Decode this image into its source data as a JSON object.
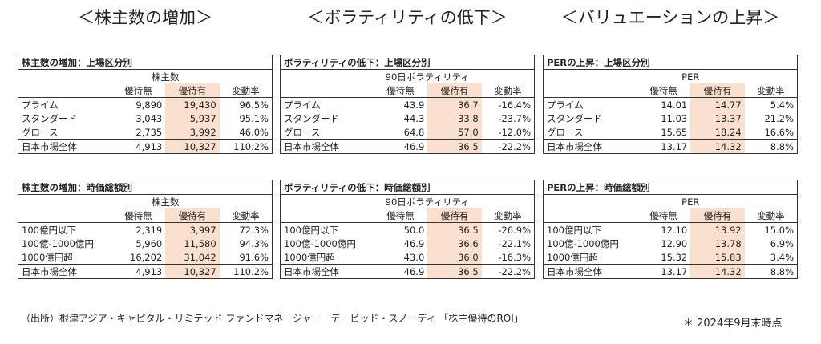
{
  "sections": [
    {
      "heading": "＜株主数の増加＞",
      "tables": [
        {
          "title": "株主数の増加：上場区分別",
          "metric": "株主数",
          "columns": [
            "優待無",
            "優待有",
            "変動率"
          ],
          "rows": [
            [
              "プライム",
              "9,890",
              "19,430",
              "96.5%"
            ],
            [
              "スタンダード",
              "3,043",
              "5,937",
              "95.1%"
            ],
            [
              "グロース",
              "2,735",
              "3,992",
              "46.0%"
            ],
            [
              "日本市場全体",
              "4,913",
              "10,327",
              "110.2%"
            ]
          ]
        },
        {
          "title": "株主数の増加：時価総額別",
          "metric": "株主数",
          "columns": [
            "優待無",
            "優待有",
            "変動率"
          ],
          "rows": [
            [
              "100億円以下",
              "2,319",
              "3,997",
              "72.3%"
            ],
            [
              "100億-1000億円",
              "5,960",
              "11,580",
              "94.3%"
            ],
            [
              "1000億円超",
              "16,202",
              "31,042",
              "91.6%"
            ],
            [
              "日本市場全体",
              "4,913",
              "10,327",
              "110.2%"
            ]
          ]
        }
      ]
    },
    {
      "heading": "＜ボラティリティの低下＞",
      "tables": [
        {
          "title": "ボラティリティの低下：上場区分別",
          "metric": "90日ボラティリティ",
          "columns": [
            "優待無",
            "優待有",
            "変動率"
          ],
          "rows": [
            [
              "プライム",
              "43.9",
              "36.7",
              "-16.4%"
            ],
            [
              "スタンダード",
              "44.3",
              "33.8",
              "-23.7%"
            ],
            [
              "グロース",
              "64.8",
              "57.0",
              "-12.0%"
            ],
            [
              "日本市場全体",
              "46.9",
              "36.5",
              "-22.2%"
            ]
          ]
        },
        {
          "title": "ボラティリティの低下：時価総額別",
          "metric": "90日ボラティリティ",
          "columns": [
            "優待無",
            "優待有",
            "変動率"
          ],
          "rows": [
            [
              "100億円以下",
              "50.0",
              "36.5",
              "-26.9%"
            ],
            [
              "100億-1000億円",
              "46.9",
              "36.6",
              "-22.1%"
            ],
            [
              "1000億円超",
              "43.0",
              "36.0",
              "-16.3%"
            ],
            [
              "日本市場全体",
              "46.9",
              "36.5",
              "-22.2%"
            ]
          ]
        }
      ]
    },
    {
      "heading": "＜バリュエーションの上昇＞",
      "tables": [
        {
          "title": "PERの上昇：上場区分別",
          "metric": "PER",
          "columns": [
            "優待無",
            "優待有",
            "変動率"
          ],
          "rows": [
            [
              "プライム",
              "14.01",
              "14.77",
              "5.4%"
            ],
            [
              "スタンダード",
              "11.03",
              "13.37",
              "21.2%"
            ],
            [
              "グロース",
              "15.65",
              "18.24",
              "16.6%"
            ],
            [
              "日本市場全体",
              "13.17",
              "14.32",
              "8.8%"
            ]
          ]
        },
        {
          "title": "PERの上昇：時価総額別",
          "metric": "PER",
          "columns": [
            "優待無",
            "優待有",
            "変動率"
          ],
          "rows": [
            [
              "100億円以下",
              "12.10",
              "13.92",
              "15.0%"
            ],
            [
              "100億-1000億円",
              "12.90",
              "13.78",
              "6.9%"
            ],
            [
              "1000億円超",
              "15.32",
              "15.83",
              "3.4%"
            ],
            [
              "日本市場全体",
              "13.17",
              "14.32",
              "8.8%"
            ]
          ]
        }
      ]
    }
  ],
  "footer": {
    "source": "（出所）根津アジア・キャピタル・リミテッド ファンドマネージャー　デービッド・スノーディ 「株主優待のROI」",
    "note": "＊ 2024年9月末時点"
  }
}
